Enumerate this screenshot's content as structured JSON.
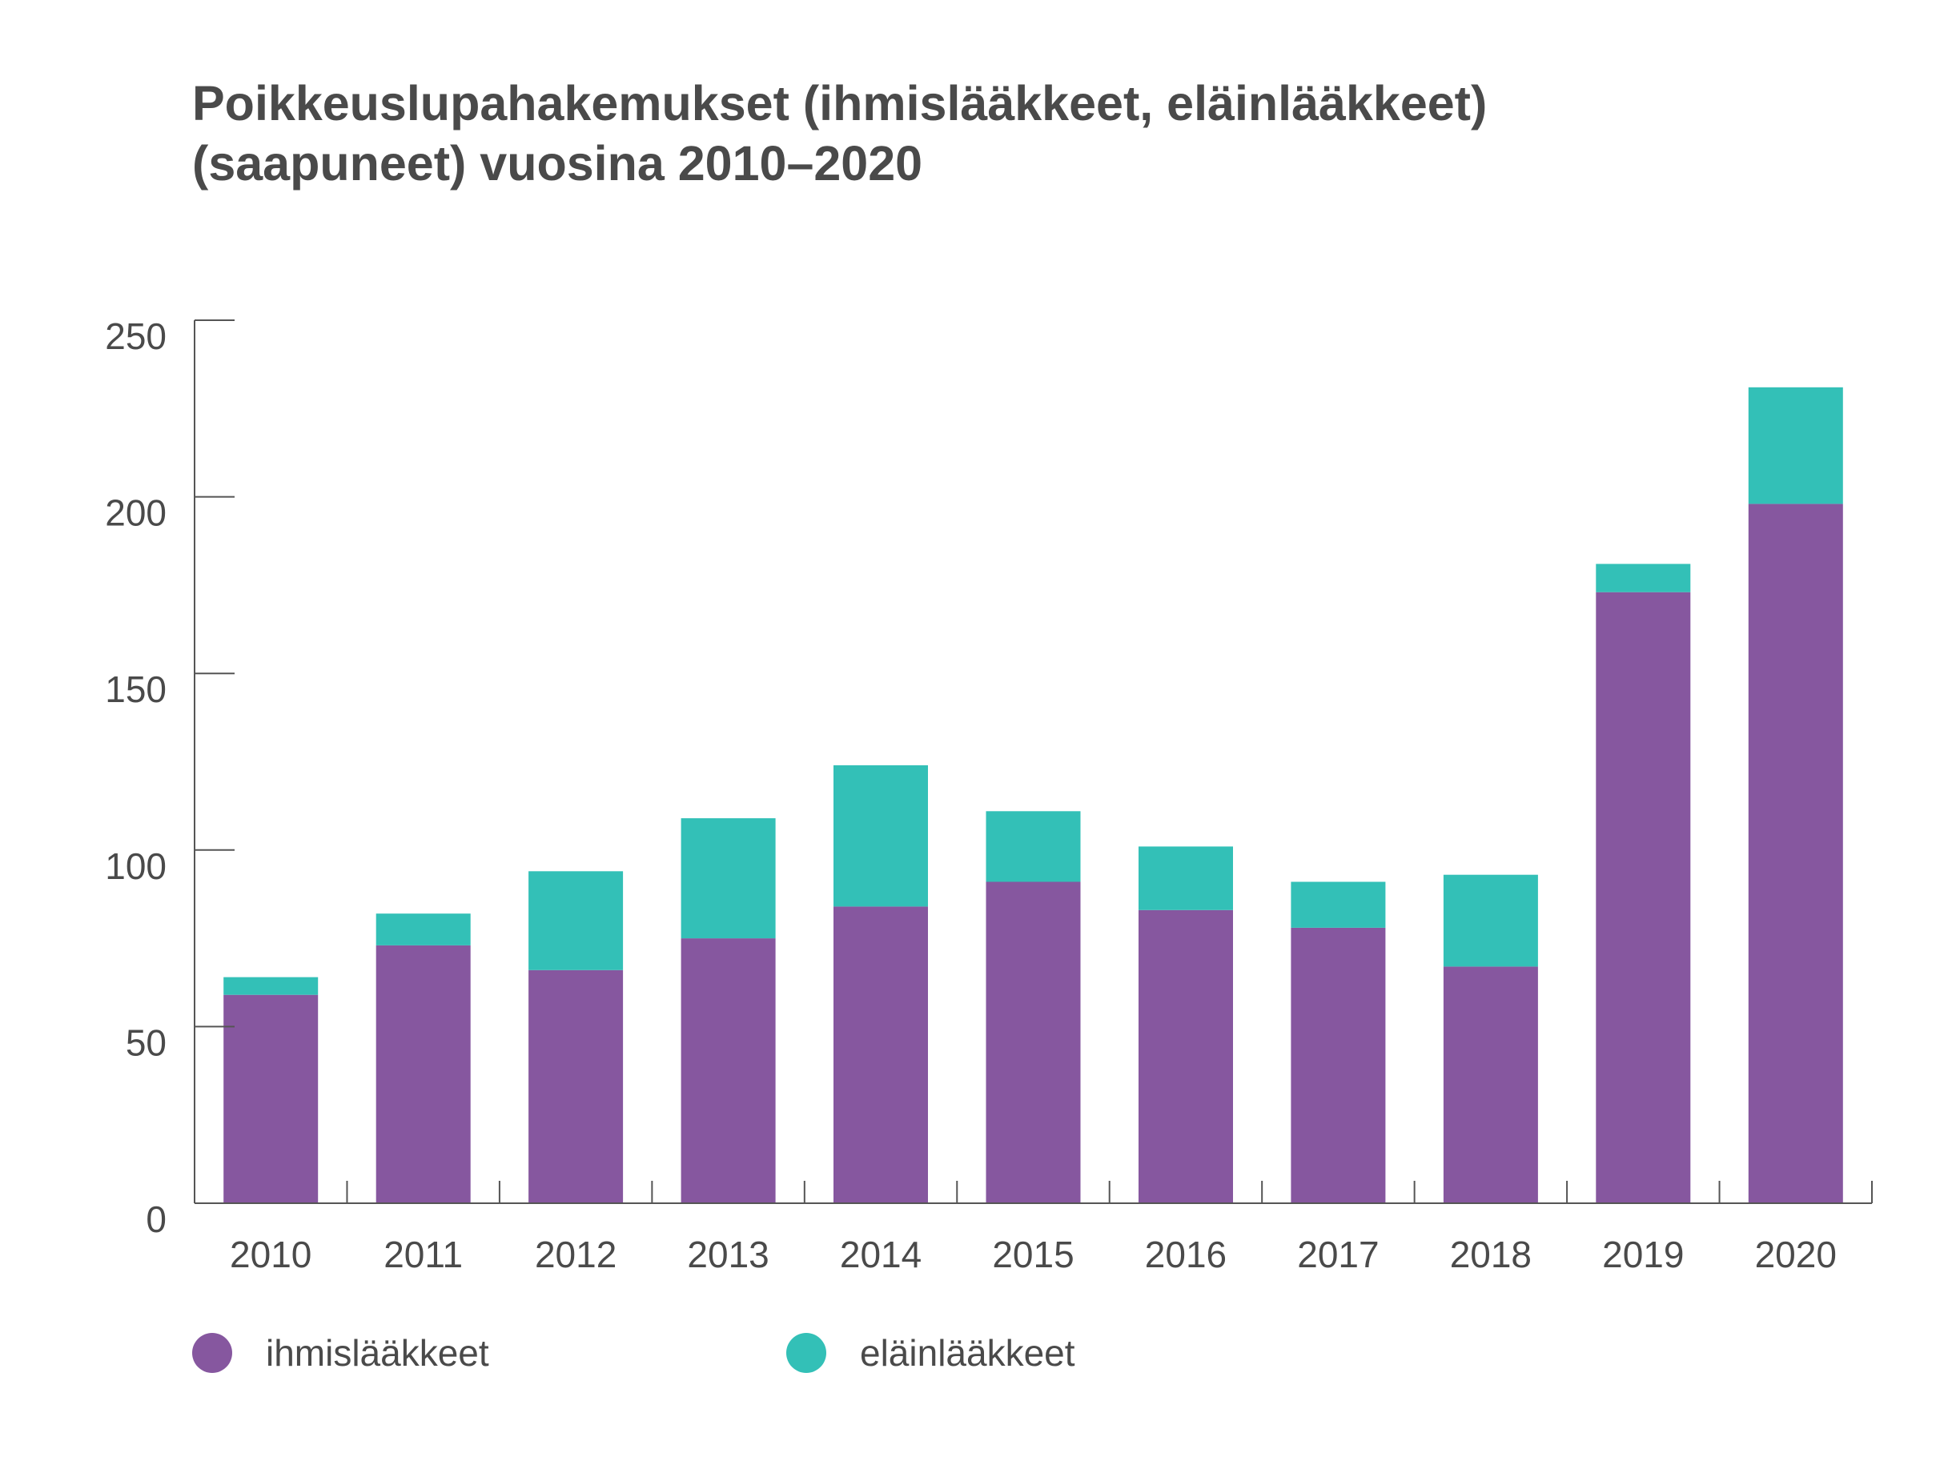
{
  "chart_data": {
    "type": "bar",
    "stacked": true,
    "title_lines": [
      "Poikkeuslupahakemukset (ihmislääkkeet, eläinlääkkeet)",
      "(saapuneet) vuosina 2010–2020"
    ],
    "categories": [
      "2010",
      "2011",
      "2012",
      "2013",
      "2014",
      "2015",
      "2016",
      "2017",
      "2018",
      "2019",
      "2020"
    ],
    "series": [
      {
        "name": "ihmislääkkeet",
        "color": "#86579f",
        "values": [
          59,
          73,
          66,
          75,
          84,
          91,
          83,
          78,
          67,
          173,
          198
        ]
      },
      {
        "name": "eläinlääkkeet",
        "color": "#33c0b7",
        "values": [
          5,
          9,
          28,
          34,
          40,
          20,
          18,
          13,
          26,
          8,
          33
        ]
      }
    ],
    "yticks": [
      0,
      50,
      100,
      150,
      200,
      250
    ],
    "ylim": [
      0,
      250
    ],
    "xlabel": "",
    "ylabel": "",
    "legend_position": "bottom"
  }
}
